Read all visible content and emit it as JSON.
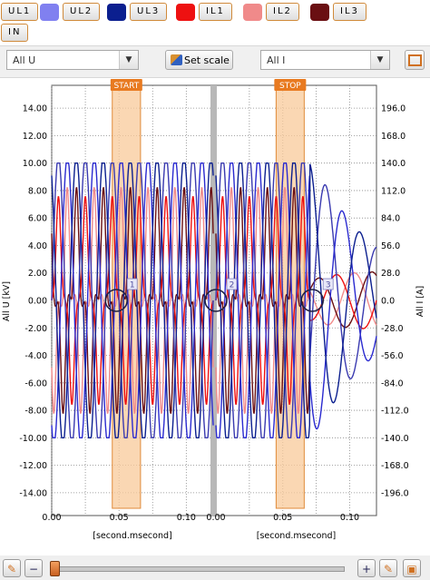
{
  "legend": [
    {
      "label": "UL1",
      "color": "#9a9aee"
    },
    {
      "label": "UL2",
      "color": "#8080f0"
    },
    {
      "label": "UL3",
      "color": "#0b1f8f"
    },
    {
      "label": "IL1",
      "color": "#ee1111"
    },
    {
      "label": "IL2",
      "color": "#f08a8a"
    },
    {
      "label": "IL3",
      "color": "#6a0f12"
    },
    {
      "label": "IN",
      "color": ""
    }
  ],
  "toolbar": {
    "voltage_select": "All U",
    "set_scale_label": "Set scale",
    "current_select": "All I"
  },
  "chart_data": {
    "type": "line",
    "ylabel": "All U [kV]",
    "y2label": "All I [A]",
    "xlabel": "[second.msecond]",
    "y_ticks": [
      "14.00",
      "12.00",
      "10.00",
      "8.00",
      "6.00",
      "4.00",
      "2.00",
      "0.00",
      "-2.00",
      "-4.00",
      "-6.00",
      "-8.00",
      "-10.00",
      "-12.00",
      "-14.00"
    ],
    "y2_ticks": [
      "196.0",
      "168.0",
      "140.0",
      "112.0",
      "84.0",
      "56.0",
      "28.0",
      "0.0",
      "-28.0",
      "-56.0",
      "-84.0",
      "-112.0",
      "-140.0",
      "-168.0",
      "-196.0"
    ],
    "ylim": [
      -15,
      15
    ],
    "y2lim": [
      -210,
      210
    ],
    "left_x_ticks": [
      "0.00",
      "0.05",
      "0.10"
    ],
    "right_x_ticks": [
      "0.00",
      "0.05",
      "0.10"
    ],
    "left_xlim": [
      0,
      0.12
    ],
    "right_xlim": [
      0,
      0.12
    ],
    "start_marker": {
      "label": "START",
      "x_from": 0.045,
      "x_to": 0.066
    },
    "stop_marker": {
      "label": "STOP",
      "x_from": 0.045,
      "x_to": 0.066
    },
    "point_markers": [
      {
        "label": "1",
        "panel": "left",
        "x": 0.048,
        "y": 0.0
      },
      {
        "label": "2",
        "panel": "right",
        "x": 0.0,
        "y": 0.0
      },
      {
        "label": "3",
        "panel": "right",
        "x": 0.072,
        "y": 0.0
      }
    ],
    "waveform": {
      "frequency_hz": 50,
      "voltage_amplitude_kv": 10.0,
      "current_peak_a": 112,
      "fault_time_s": 0.07
    },
    "series": [
      {
        "name": "UL1",
        "color": "#3a3ab0",
        "phase_deg": 0
      },
      {
        "name": "UL2",
        "color": "#2a2ad0",
        "phase_deg": -120
      },
      {
        "name": "UL3",
        "color": "#0b1f8f",
        "phase_deg": 120
      },
      {
        "name": "IL1",
        "color": "#ee1111",
        "phase_deg": 0
      },
      {
        "name": "IL2",
        "color": "#f08a8a",
        "phase_deg": -120
      },
      {
        "name": "IL3",
        "color": "#6a0f12",
        "phase_deg": 120
      }
    ]
  }
}
